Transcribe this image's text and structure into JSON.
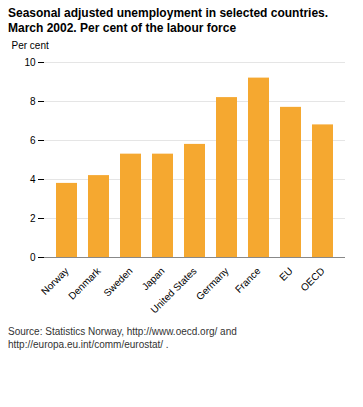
{
  "chart_data": {
    "type": "bar",
    "title": "Seasonal adjusted unemployment in selected countries.",
    "subtitle": "March 2002. Per cent of the labour force",
    "y_label": "Per cent",
    "caption": "Source: Statistics Norway, http://www.oecd.org/ and\nhttp://europa.eu.int/comm/eurostat/ .",
    "categories": [
      "Norway",
      "Denmark",
      "Sweden",
      "Japan",
      "United States",
      "Germany",
      "France",
      "EU",
      "OECD"
    ],
    "values": [
      3.8,
      4.2,
      5.3,
      5.3,
      5.8,
      8.2,
      9.2,
      7.7,
      6.8
    ],
    "color": "#F5A830",
    "ylim": [
      0,
      10
    ],
    "yticks": [
      0,
      2,
      4,
      6,
      8,
      10
    ],
    "grid": true
  }
}
